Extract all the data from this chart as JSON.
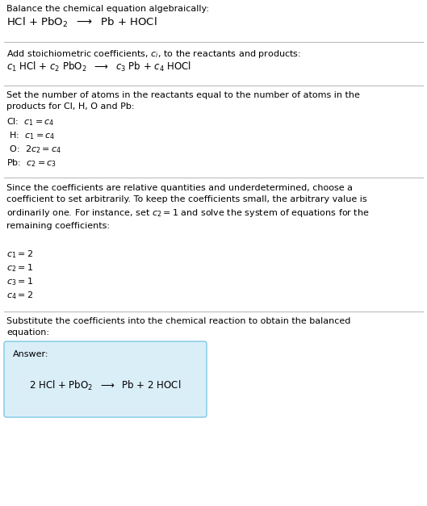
{
  "bg_color": "#ffffff",
  "text_color": "#000000",
  "divider_color": "#bbbbbb",
  "answer_box_color": "#daeef8",
  "answer_box_edge": "#7ec8e3",
  "section1_title": "Balance the chemical equation algebraically:",
  "section2_title": "Add stoichiometric coefficients, $c_i$, to the reactants and products:",
  "section3_title": "Set the number of atoms in the reactants equal to the number of atoms in the\nproducts for Cl, H, O and Pb:",
  "section3_equations": [
    "Cl:  $c_1 = c_4$",
    " H:  $c_1 = c_4$",
    " O:  $2 c_2 = c_4$",
    "Pb:  $c_2 = c_3$"
  ],
  "section4_title": "Since the coefficients are relative quantities and underdetermined, choose a\ncoefficient to set arbitrarily. To keep the coefficients small, the arbitrary value is\nordinarily one. For instance, set $c_2 = 1$ and solve the system of equations for the\nremaining coefficients:",
  "section4_values": [
    "$c_1 = 2$",
    "$c_2 = 1$",
    "$c_3 = 1$",
    "$c_4 = 2$"
  ],
  "section5_title": "Substitute the coefficients into the chemical reaction to obtain the balanced\nequation:",
  "answer_label": "Answer:",
  "fs_body": 8.0,
  "fs_eq1": 9.5,
  "fs_eq2": 8.5,
  "fs_coeff": 8.0
}
